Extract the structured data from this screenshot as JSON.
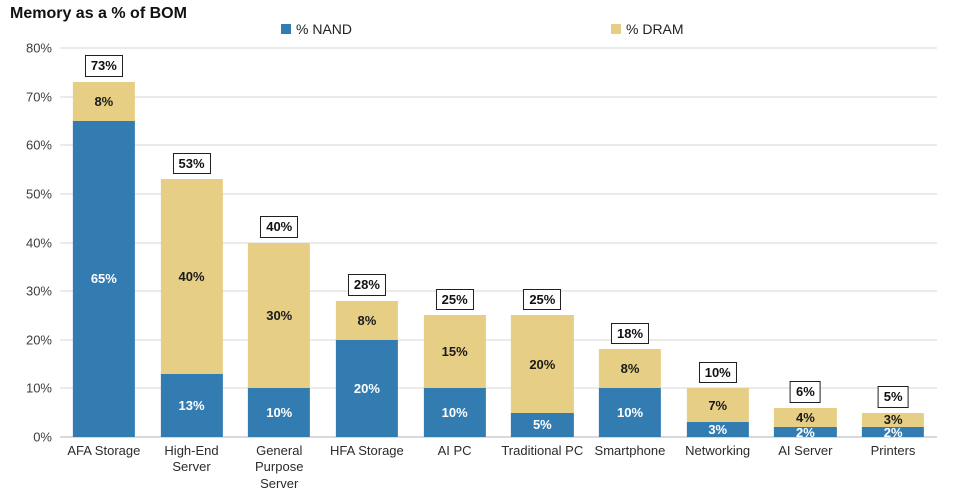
{
  "title": "Memory as a % of BOM",
  "legend": {
    "nand": {
      "label": "% NAND",
      "color": "#337CB2"
    },
    "dram": {
      "label": "% DRAM",
      "color": "#E6CE85"
    }
  },
  "colors": {
    "nand": "#337CB2",
    "dram": "#E6CE85",
    "gridline": "#EBEBEB",
    "zero_axis_line": "#D9D9D9",
    "nand_label_text": "#FFFFFF",
    "dram_label_text": "#1A1A1A",
    "total_box_border": "#1F1F1F",
    "total_box_background": "#FFFFFF"
  },
  "chart_data": {
    "type": "bar",
    "stacked": true,
    "title": "Memory as a % of BOM",
    "xlabel": "",
    "ylabel": "",
    "ylim": [
      0,
      80
    ],
    "ytick_step": 10,
    "ytick_labels": [
      "0%",
      "10%",
      "20%",
      "30%",
      "40%",
      "50%",
      "60%",
      "70%",
      "80%"
    ],
    "grid": "horizontal",
    "legend_position": "top",
    "categories": [
      "AFA Storage",
      "High-End Server",
      "General Purpose Server",
      "HFA Storage",
      "AI PC",
      "Traditional PC",
      "Smartphone",
      "Networking",
      "AI Server",
      "Printers"
    ],
    "series": [
      {
        "name": "% NAND",
        "color": "#337CB2",
        "values": [
          65,
          13,
          10,
          20,
          10,
          5,
          10,
          3,
          2,
          2
        ],
        "labels": [
          "65%",
          "13%",
          "10%",
          "20%",
          "10%",
          "5%",
          "10%",
          "3%",
          "2%",
          "2%"
        ]
      },
      {
        "name": "% DRAM",
        "color": "#E6CE85",
        "values": [
          8,
          40,
          30,
          8,
          15,
          20,
          8,
          7,
          4,
          3
        ],
        "labels": [
          "8%",
          "40%",
          "30%",
          "8%",
          "15%",
          "20%",
          "8%",
          "7%",
          "4%",
          "3%"
        ]
      }
    ],
    "totals": [
      73,
      53,
      40,
      28,
      25,
      25,
      18,
      10,
      6,
      5
    ],
    "total_labels": [
      "73%",
      "53%",
      "40%",
      "28%",
      "25%",
      "25%",
      "18%",
      "10%",
      "6%",
      "5%"
    ]
  }
}
